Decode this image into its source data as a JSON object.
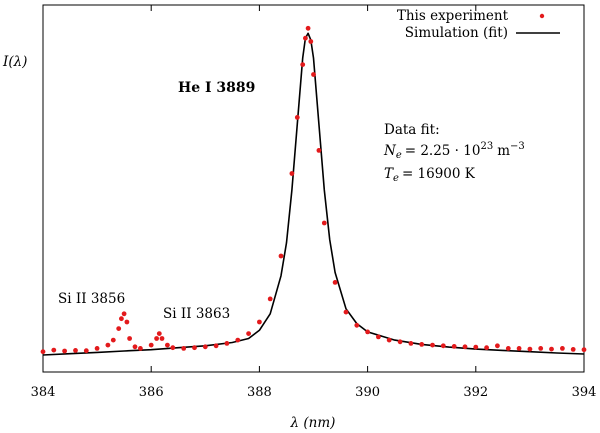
{
  "chart_data": {
    "type": "scatter",
    "title": "He I 3889",
    "xlabel": "λ (nm)",
    "ylabel": "I(λ)",
    "xlim": [
      384,
      394
    ],
    "ylim": [
      0,
      1
    ],
    "grid": false,
    "legend_position": "top-right",
    "x_ticks": [
      "384",
      "386",
      "388",
      "390",
      "392",
      "394"
    ],
    "tick_values": [
      384,
      386,
      388,
      390,
      392,
      394
    ],
    "series": [
      {
        "name": "This experiment",
        "style": "points",
        "color": "#e31a1c",
        "x": [
          384.0,
          384.2,
          384.4,
          384.6,
          384.8,
          385.0,
          385.2,
          385.3,
          385.4,
          385.45,
          385.5,
          385.55,
          385.6,
          385.7,
          385.8,
          386.0,
          386.1,
          386.15,
          386.2,
          386.3,
          386.4,
          386.6,
          386.8,
          387.0,
          387.2,
          387.4,
          387.6,
          387.8,
          388.0,
          388.2,
          388.4,
          388.6,
          388.7,
          388.8,
          388.85,
          388.9,
          388.95,
          389.0,
          389.1,
          389.2,
          389.4,
          389.6,
          389.8,
          390.0,
          390.2,
          390.4,
          390.6,
          390.8,
          391.0,
          391.2,
          391.4,
          391.6,
          391.8,
          392.0,
          392.2,
          392.4,
          392.6,
          392.8,
          393.0,
          393.2,
          393.4,
          393.6,
          393.8,
          394.0
        ],
        "y": [
          0.01,
          0.015,
          0.012,
          0.014,
          0.013,
          0.02,
          0.03,
          0.045,
          0.08,
          0.11,
          0.125,
          0.1,
          0.05,
          0.025,
          0.02,
          0.03,
          0.05,
          0.065,
          0.05,
          0.03,
          0.022,
          0.02,
          0.022,
          0.025,
          0.028,
          0.035,
          0.045,
          0.065,
          0.1,
          0.17,
          0.3,
          0.55,
          0.72,
          0.88,
          0.96,
          0.99,
          0.95,
          0.85,
          0.62,
          0.4,
          0.22,
          0.13,
          0.09,
          0.07,
          0.055,
          0.045,
          0.04,
          0.035,
          0.032,
          0.03,
          0.028,
          0.026,
          0.025,
          0.024,
          0.022,
          0.028,
          0.02,
          0.02,
          0.018,
          0.02,
          0.018,
          0.02,
          0.017,
          0.016
        ]
      },
      {
        "name": "Simulation (fit)",
        "style": "line",
        "color": "#000000",
        "x": [
          384.0,
          384.5,
          385.0,
          385.5,
          386.0,
          386.5,
          387.0,
          387.5,
          387.8,
          388.0,
          388.2,
          388.4,
          388.5,
          388.6,
          388.7,
          388.8,
          388.85,
          388.9,
          388.95,
          389.0,
          389.1,
          389.2,
          389.3,
          389.4,
          389.6,
          389.8,
          390.0,
          390.5,
          391.0,
          391.5,
          392.0,
          392.5,
          393.0,
          393.5,
          394.0
        ],
        "y": [
          0.0,
          0.004,
          0.008,
          0.012,
          0.016,
          0.022,
          0.028,
          0.038,
          0.05,
          0.075,
          0.125,
          0.24,
          0.34,
          0.5,
          0.7,
          0.9,
          0.96,
          0.975,
          0.955,
          0.9,
          0.7,
          0.5,
          0.35,
          0.25,
          0.14,
          0.095,
          0.07,
          0.045,
          0.032,
          0.024,
          0.018,
          0.014,
          0.01,
          0.006,
          0.003
        ]
      }
    ]
  },
  "annotations": {
    "he_line": "He I 3889",
    "si_3856": "Si II 3856",
    "si_3863": "Si II 3863",
    "fit_heading": "Data fit:",
    "ne_symbol": "N",
    "ne_sub": "e",
    "ne_value_prefix": "= 2.25 · 10",
    "ne_exp": "23",
    "ne_unit": "m",
    "ne_unit_exp": "−3",
    "te_symbol": "T",
    "te_sub": "e",
    "te_value": "= 16900 K"
  },
  "colors": {
    "experiment": "#e31a1c",
    "fit": "#000000",
    "axis": "#000000"
  }
}
